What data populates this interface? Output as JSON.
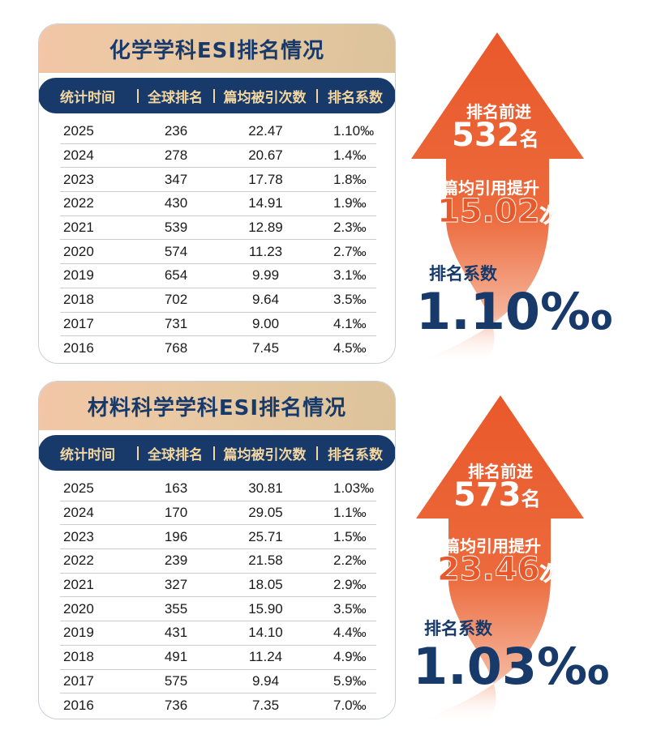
{
  "colors": {
    "navy": "#173a6b",
    "gold": "#f4d7a0",
    "orange": "#e9582a"
  },
  "sections": [
    {
      "title": "化学学科ESI排名情况",
      "headers": [
        "统计时间",
        "全球排名",
        "篇均被引次数",
        "排名系数"
      ],
      "rows": [
        [
          "2025",
          "236",
          "22.47",
          "1.10‰"
        ],
        [
          "2024",
          "278",
          "20.67",
          "1.4‰"
        ],
        [
          "2023",
          "347",
          "17.78",
          "1.8‰"
        ],
        [
          "2022",
          "430",
          "14.91",
          "1.9‰"
        ],
        [
          "2021",
          "539",
          "12.89",
          "2.3‰"
        ],
        [
          "2020",
          "574",
          "11.23",
          "2.7‰"
        ],
        [
          "2019",
          "654",
          "9.99",
          "3.1‰"
        ],
        [
          "2018",
          "702",
          "9.64",
          "3.5‰"
        ],
        [
          "2017",
          "731",
          "9.00",
          "4.1‰"
        ],
        [
          "2016",
          "768",
          "7.45",
          "4.5‰"
        ]
      ],
      "stats": {
        "rank_label": "排名前进",
        "rank_value": "532",
        "rank_unit": "名",
        "cite_label": "篇均引用提升",
        "cite_value": "15.02",
        "cite_unit": "次",
        "coef_label": "排名系数",
        "coef_value": "1.10‰"
      }
    },
    {
      "title": "材料科学学科ESI排名情况",
      "headers": [
        "统计时间",
        "全球排名",
        "篇均被引次数",
        "排名系数"
      ],
      "rows": [
        [
          "2025",
          "163",
          "30.81",
          "1.03‰"
        ],
        [
          "2024",
          "170",
          "29.05",
          "1.1‰"
        ],
        [
          "2023",
          "196",
          "25.71",
          "1.5‰"
        ],
        [
          "2022",
          "239",
          "21.58",
          "2.2‰"
        ],
        [
          "2021",
          "327",
          "18.05",
          "2.9‰"
        ],
        [
          "2020",
          "355",
          "15.90",
          "3.5‰"
        ],
        [
          "2019",
          "431",
          "14.10",
          "4.4‰"
        ],
        [
          "2018",
          "491",
          "11.24",
          "4.9‰"
        ],
        [
          "2017",
          "575",
          "9.94",
          "5.9‰"
        ],
        [
          "2016",
          "736",
          "7.35",
          "7.0‰"
        ]
      ],
      "stats": {
        "rank_label": "排名前进",
        "rank_value": "573",
        "rank_unit": "名",
        "cite_label": "篇均引用提升",
        "cite_value": "23.46",
        "cite_unit": "次",
        "coef_label": "排名系数",
        "coef_value": "1.03‰"
      }
    }
  ]
}
